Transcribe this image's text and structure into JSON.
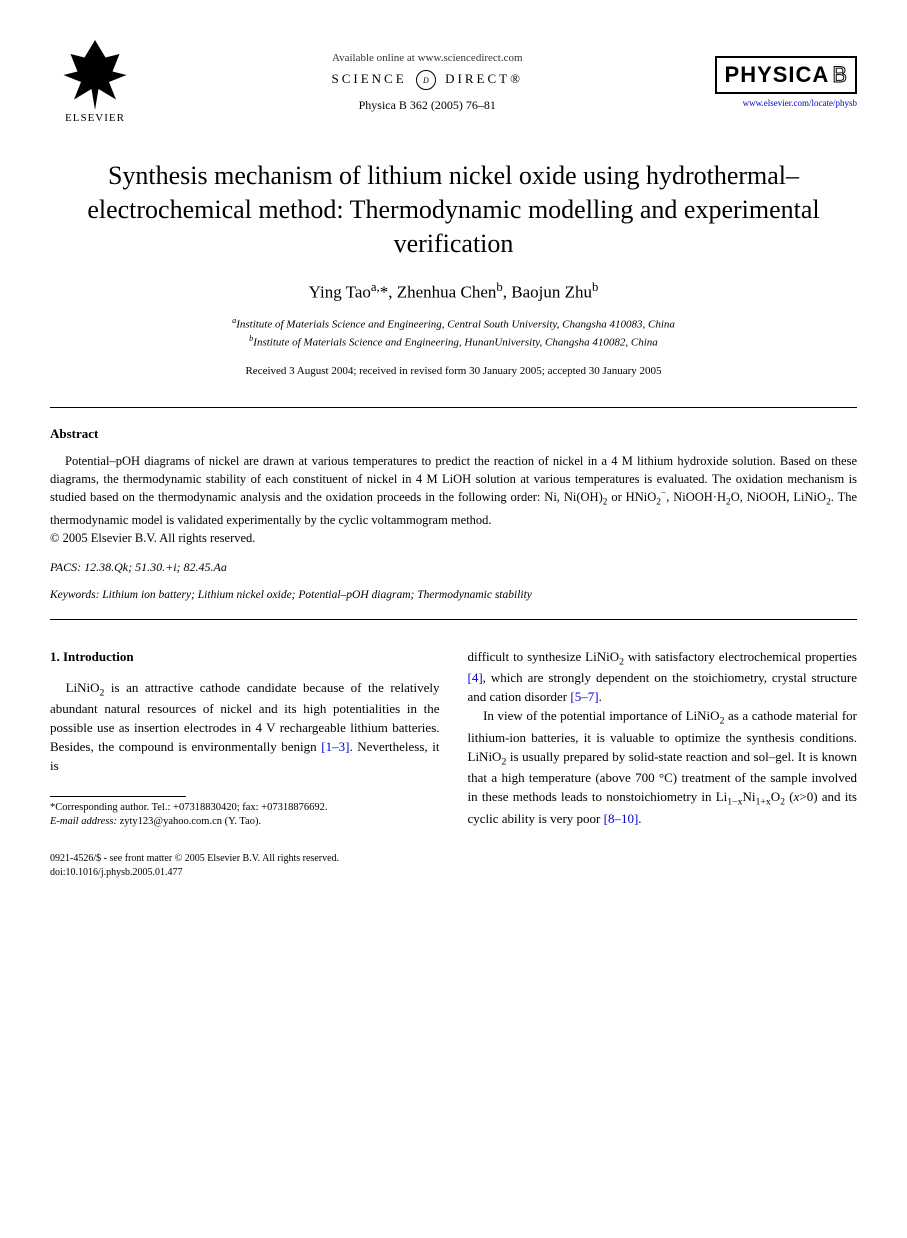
{
  "header": {
    "publisher": "ELSEVIER",
    "available_online": "Available online at www.sciencedirect.com",
    "science_direct": "SCIENCE",
    "science_direct2": "DIRECT®",
    "journal_ref": "Physica B 362 (2005) 76–81",
    "journal_brand": "PHYSICA",
    "journal_letter": "B",
    "journal_url": "www.elsevier.com/locate/physb"
  },
  "title": "Synthesis mechanism of lithium nickel oxide using hydrothermal–electrochemical method: Thermodynamic modelling and experimental verification",
  "authors": "Ying Taoa,*, Zhenhua Chenb, Baojun Zhub",
  "authors_html": "Ying Tao<sup>a,</sup>*, Zhenhua Chen<sup>b</sup>, Baojun Zhu<sup>b</sup>",
  "affiliations": {
    "a": "aInstitute of Materials Science and Engineering, Central South University, Changsha 410083, China",
    "b": "bInstitute of Materials Science and Engineering, HunanUniversity, Changsha 410082, China"
  },
  "dates": "Received 3 August 2004; received in revised form 30 January 2005; accepted 30 January 2005",
  "abstract": {
    "heading": "Abstract",
    "body": "Potential–pOH diagrams of nickel are drawn at various temperatures to predict the reaction of nickel in a 4 M lithium hydroxide solution. Based on these diagrams, the thermodynamic stability of each constituent of nickel in 4 M LiOH solution at various temperatures is evaluated. The oxidation mechanism is studied based on the thermodynamic analysis and the oxidation proceeds in the following order: Ni, Ni(OH)₂ or HNiO₂⁻, NiOOH·H₂O, NiOOH, LiNiO₂. The thermodynamic model is validated experimentally by the cyclic voltammogram method.",
    "copyright": "© 2005 Elsevier B.V. All rights reserved."
  },
  "pacs": "PACS: 12.38.Qk; 51.30.+i; 82.45.Aa",
  "keywords": "Keywords: Lithium ion battery; Lithium nickel oxide; Potential–pOH diagram; Thermodynamic stability",
  "body": {
    "section1_heading": "1. Introduction",
    "col1_p1": "LiNiO₂ is an attractive cathode candidate because of the relatively abundant natural resources of nickel and its high potentialities in the possible use as insertion electrodes in 4 V rechargeable lithium batteries. Besides, the compound is environmentally benign [1–3]. Nevertheless, it is",
    "col2_p1": "difficult to synthesize LiNiO₂ with satisfactory electrochemical properties [4], which are strongly dependent on the stoichiometry, crystal structure and cation disorder [5–7].",
    "col2_p2": "In view of the potential importance of LiNiO₂ as a cathode material for lithium-ion batteries, it is valuable to optimize the synthesis conditions. LiNiO₂ is usually prepared by solid-state reaction and sol–gel. It is known that a high temperature (above 700 °C) treatment of the sample involved in these methods leads to nonstoichiometry in Li₁₋ₓNi₁₊ₓO₂ (x>0) and its cyclic ability is very poor [8–10]."
  },
  "footnote": {
    "corresponding": "*Corresponding author. Tel.: +07318830420; fax: +07318876692.",
    "email_label": "E-mail address:",
    "email": "zyty123@yahoo.com.cn (Y. Tao)."
  },
  "footer": {
    "line1": "0921-4526/$ - see front matter © 2005 Elsevier B.V. All rights reserved.",
    "line2": "doi:10.1016/j.physb.2005.01.477"
  }
}
